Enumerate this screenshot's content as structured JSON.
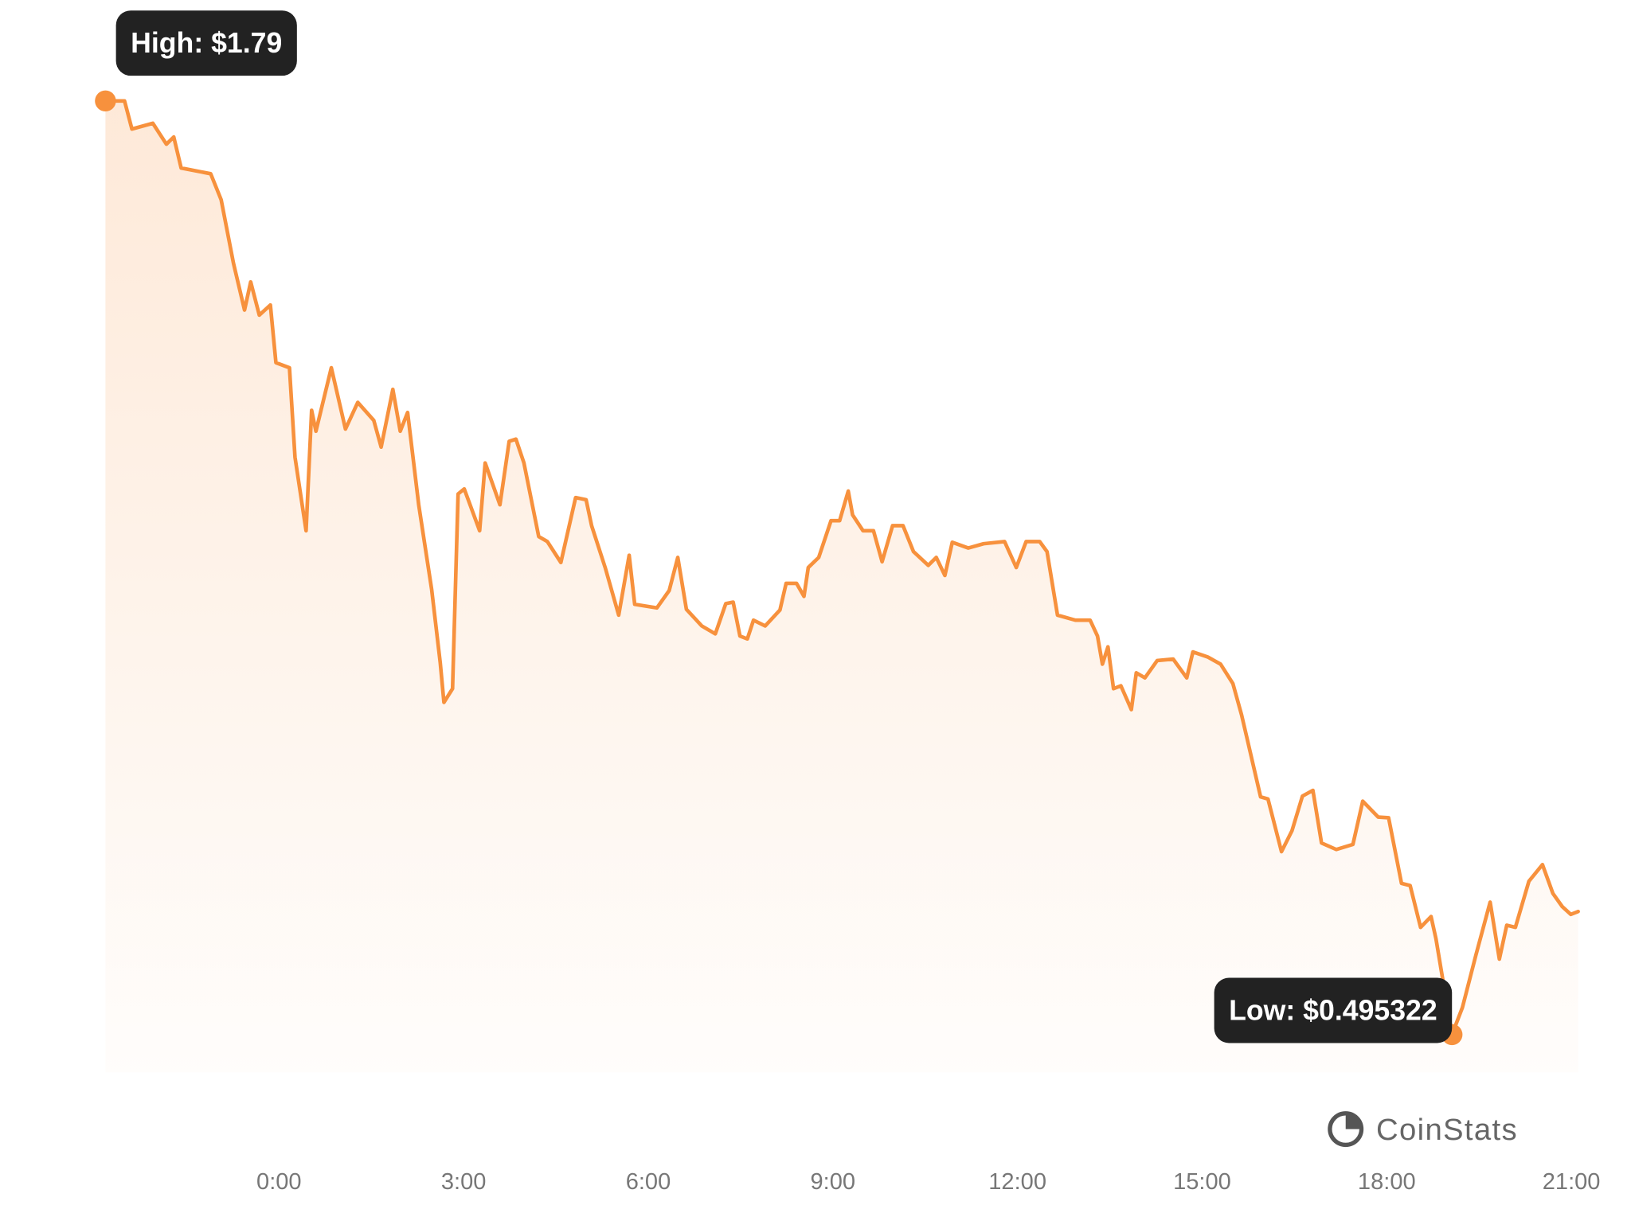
{
  "chart_data": {
    "type": "line",
    "color": "#f7913d",
    "watermark": "CoinStats",
    "x": [
      -2.82,
      -2.51,
      -2.39,
      -2.05,
      -1.83,
      -1.71,
      -1.59,
      -1.11,
      -0.94,
      -0.74,
      -0.56,
      -0.46,
      -0.32,
      -0.14,
      -0.05,
      0.17,
      0.26,
      0.44,
      0.53,
      0.6,
      0.85,
      1.08,
      1.28,
      1.54,
      1.66,
      1.85,
      1.97,
      2.09,
      2.27,
      2.48,
      2.62,
      2.68,
      2.82,
      2.91,
      3.01,
      3.26,
      3.35,
      3.59,
      3.74,
      3.85,
      3.98,
      4.22,
      4.36,
      4.58,
      4.82,
      4.99,
      5.08,
      5.3,
      5.52,
      5.69,
      5.78,
      6.14,
      6.34,
      6.48,
      6.62,
      6.87,
      7.09,
      7.26,
      7.38,
      7.49,
      7.61,
      7.71,
      7.9,
      8.14,
      8.24,
      8.41,
      8.53,
      8.6,
      8.77,
      8.97,
      9.11,
      9.25,
      9.32,
      9.49,
      9.66,
      9.8,
      9.97,
      10.14,
      10.31,
      10.55,
      10.68,
      10.82,
      10.94,
      11.2,
      11.45,
      11.79,
      11.98,
      12.14,
      12.36,
      12.48,
      12.65,
      12.94,
      13.18,
      13.3,
      13.38,
      13.47,
      13.56,
      13.68,
      13.85,
      13.93,
      14.07,
      14.27,
      14.53,
      14.75,
      14.85,
      15.09,
      15.3,
      15.5,
      15.64,
      15.73,
      15.95,
      16.07,
      16.29,
      16.46,
      16.63,
      16.8,
      16.94,
      17.18,
      17.45,
      17.61,
      17.86,
      18.03,
      18.24,
      18.38,
      18.55,
      18.72,
      18.8,
      19.06,
      19.23,
      19.45,
      19.68,
      19.83,
      19.95,
      20.09,
      20.31,
      20.53,
      20.7,
      20.85,
      20.99,
      21.11
    ],
    "values": [
      1.79,
      1.79,
      1.751,
      1.759,
      1.73,
      1.74,
      1.697,
      1.689,
      1.653,
      1.565,
      1.5,
      1.539,
      1.493,
      1.507,
      1.427,
      1.42,
      1.296,
      1.194,
      1.361,
      1.332,
      1.42,
      1.335,
      1.372,
      1.347,
      1.31,
      1.39,
      1.332,
      1.358,
      1.23,
      1.113,
      1.011,
      0.956,
      0.975,
      1.245,
      1.252,
      1.194,
      1.288,
      1.23,
      1.318,
      1.321,
      1.288,
      1.186,
      1.179,
      1.15,
      1.24,
      1.237,
      1.201,
      1.143,
      1.077,
      1.16,
      1.092,
      1.087,
      1.111,
      1.157,
      1.085,
      1.062,
      1.051,
      1.093,
      1.095,
      1.048,
      1.044,
      1.07,
      1.062,
      1.084,
      1.121,
      1.121,
      1.103,
      1.143,
      1.157,
      1.208,
      1.208,
      1.249,
      1.216,
      1.194,
      1.194,
      1.151,
      1.201,
      1.201,
      1.165,
      1.146,
      1.157,
      1.132,
      1.178,
      1.17,
      1.176,
      1.179,
      1.143,
      1.179,
      1.179,
      1.165,
      1.077,
      1.07,
      1.07,
      1.048,
      1.009,
      1.033,
      0.975,
      0.979,
      0.946,
      0.997,
      0.99,
      1.014,
      1.016,
      0.99,
      1.026,
      1.019,
      1.009,
      0.982,
      0.939,
      0.906,
      0.825,
      0.822,
      0.749,
      0.778,
      0.826,
      0.834,
      0.761,
      0.752,
      0.759,
      0.819,
      0.797,
      0.796,
      0.705,
      0.702,
      0.644,
      0.659,
      0.628,
      0.495322,
      0.533,
      0.606,
      0.679,
      0.6,
      0.647,
      0.644,
      0.708,
      0.731,
      0.691,
      0.673,
      0.662,
      0.666
    ],
    "xlim": [
      -2.82,
      21.11
    ],
    "ylim": [
      0.443,
      1.79
    ],
    "xticks": [
      {
        "value": 0,
        "label": "0:00"
      },
      {
        "value": 3,
        "label": "3:00"
      },
      {
        "value": 6,
        "label": "6:00"
      },
      {
        "value": 9,
        "label": "9:00"
      },
      {
        "value": 12,
        "label": "12:00"
      },
      {
        "value": 15,
        "label": "15:00"
      },
      {
        "value": 18,
        "label": "18:00"
      },
      {
        "value": 21,
        "label": "21:00"
      }
    ],
    "annotations": [
      {
        "text": "High: $1.79",
        "x": -2.82,
        "y": 1.79
      },
      {
        "text": "Low: $0.495322",
        "x": 19.06,
        "y": 0.495322
      }
    ]
  }
}
